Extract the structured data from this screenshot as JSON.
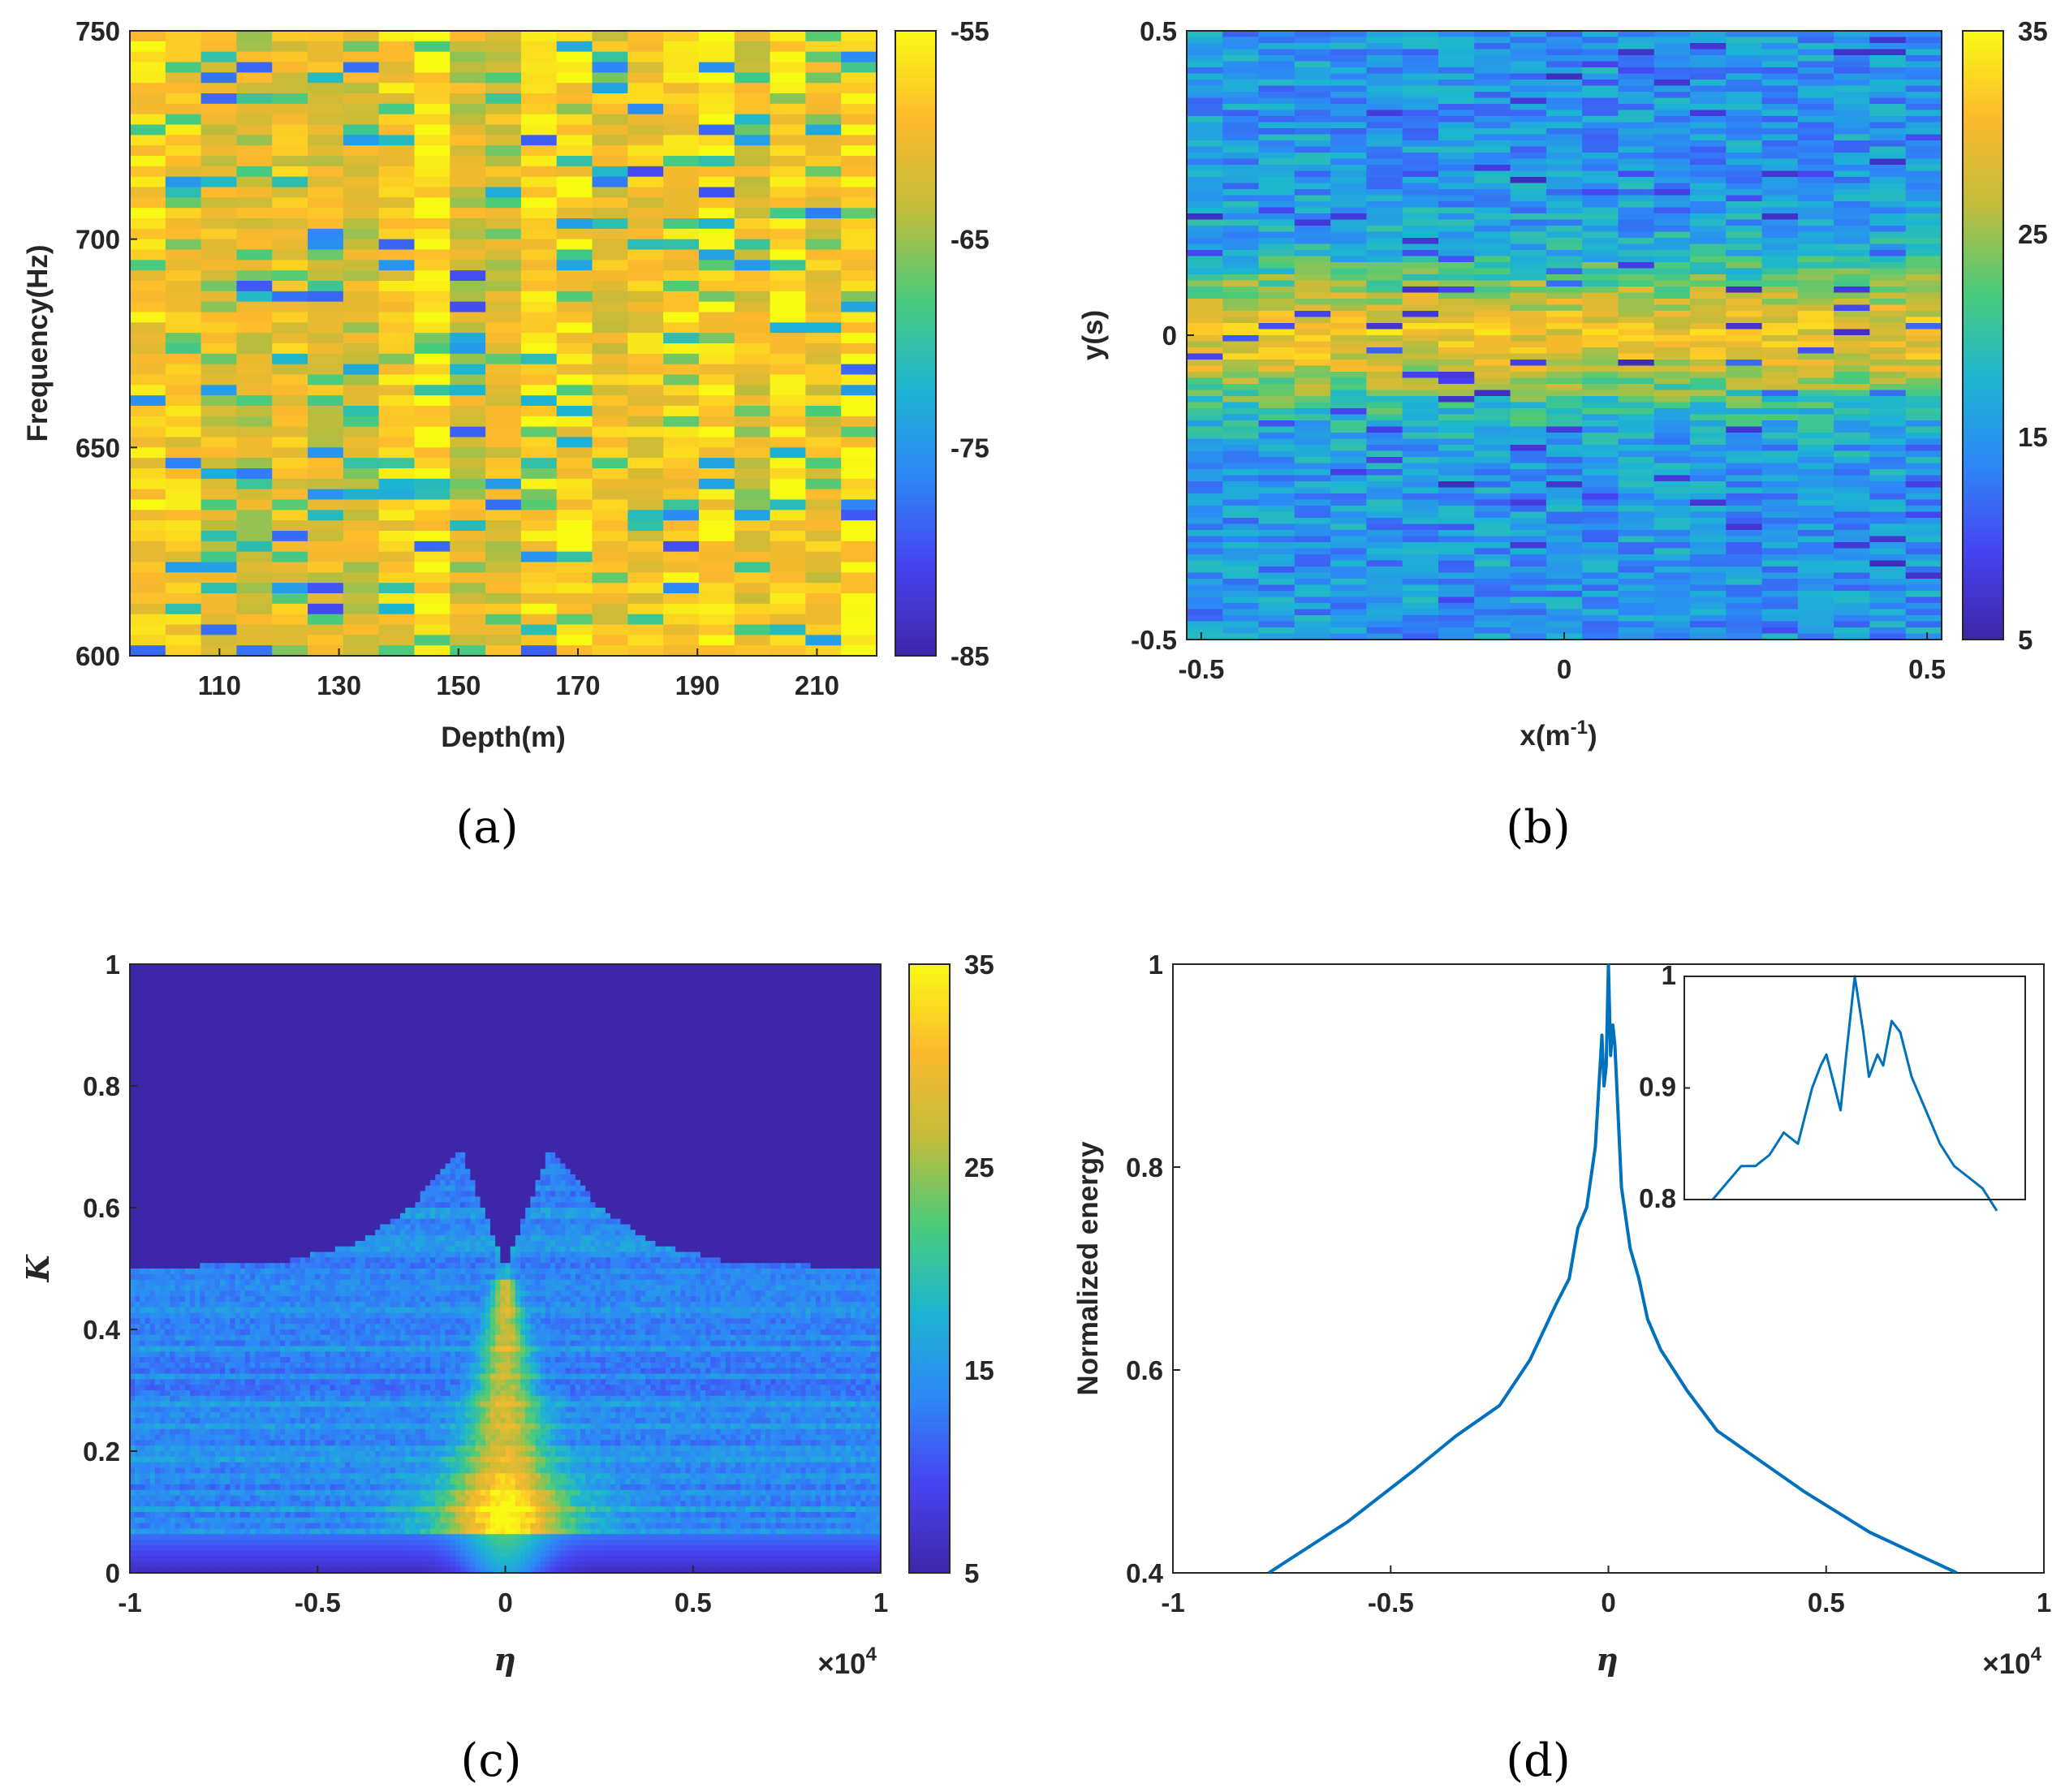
{
  "colormap": [
    "#3e26a8",
    "#4743f1",
    "#2e87f7",
    "#1cb5d1",
    "#4bcb7a",
    "#c1bc3a",
    "#fdb92d",
    "#f9fa14"
  ],
  "chart_data": [
    {
      "panel": "a",
      "type": "heatmap",
      "caption": "(a)",
      "xlabel": "Depth(m)",
      "ylabel": "Frequency(Hz)",
      "xlim": [
        95,
        220
      ],
      "ylim": [
        600,
        750
      ],
      "xticks": [
        110,
        130,
        150,
        170,
        190,
        210
      ],
      "yticks": [
        600,
        650,
        700,
        750
      ],
      "clim": [
        -85,
        -55
      ],
      "cticks": [
        -55,
        -65,
        -75,
        -85
      ],
      "column_width_m": 6,
      "value_pattern": "vertical stripes; mostly -60 to -55 dB, scattered low values near -80 dB"
    },
    {
      "panel": "b",
      "type": "heatmap",
      "caption": "(b)",
      "xlabel": "x(m",
      "xlabel_sup": "-1",
      "xlabel_end": ")",
      "ylabel": "y(s)",
      "xlim": [
        -0.52,
        0.52
      ],
      "ylim": [
        -0.5,
        0.5
      ],
      "xticks": [
        -0.5,
        0,
        0.5
      ],
      "yticks": [
        -0.5,
        0,
        0.5
      ],
      "clim": [
        5,
        35
      ],
      "cticks": [
        35,
        25,
        15,
        5
      ],
      "value_pattern": "horizontal band peaking near 30 around y = 0, falling to about 15 at |y| = 0.5"
    },
    {
      "panel": "c",
      "type": "heatmap",
      "caption": "(c)",
      "xlabel": "η",
      "ylabel": "K",
      "xlim": [
        -1,
        1
      ],
      "ylim": [
        0,
        1
      ],
      "xticks": [
        -1,
        -0.5,
        0,
        0.5,
        1
      ],
      "yticks": [
        0,
        0.2,
        0.4,
        0.6,
        0.8,
        1.0
      ],
      "x_multiplier": "×10",
      "x_multiplier_exp": "4",
      "clim": [
        5,
        35
      ],
      "cticks": [
        35,
        25,
        15,
        5
      ],
      "boundary_points": [
        [
          -1,
          0.5
        ],
        [
          -0.6,
          0.51
        ],
        [
          -0.4,
          0.54
        ],
        [
          -0.25,
          0.6
        ],
        [
          -0.12,
          0.7
        ],
        [
          -0.06,
          0.6
        ],
        [
          0,
          0.5
        ],
        [
          0.06,
          0.6
        ],
        [
          0.12,
          0.7
        ],
        [
          0.25,
          0.6
        ],
        [
          0.4,
          0.54
        ],
        [
          0.6,
          0.51
        ],
        [
          1,
          0.5
        ]
      ],
      "value_pattern": "values near 5 above the boundary; about 12 to 20 below it; peak near 30 in a plume around η = 0, K < 0.5"
    },
    {
      "panel": "d",
      "type": "line",
      "caption": "(d)",
      "xlabel": "η",
      "ylabel": "Normalized energy",
      "xlim": [
        -1,
        1
      ],
      "ylim": [
        0.4,
        1.0
      ],
      "xticks": [
        -1,
        -0.5,
        0,
        0.5,
        1
      ],
      "yticks": [
        0.4,
        0.6,
        0.8,
        1.0
      ],
      "x_multiplier": "×10",
      "x_multiplier_exp": "4",
      "line_color": "#0072bd",
      "series": [
        {
          "x": [
            -0.78,
            -0.6,
            -0.45,
            -0.35,
            -0.25,
            -0.18,
            -0.12,
            -0.09,
            -0.07,
            -0.05,
            -0.03,
            -0.015,
            -0.01,
            -0.005,
            0,
            0.005,
            0.01,
            0.015,
            0.03,
            0.05,
            0.07,
            0.09,
            0.12,
            0.18,
            0.25,
            0.35,
            0.45,
            0.6,
            0.8
          ],
          "y": [
            0.4,
            0.45,
            0.5,
            0.535,
            0.565,
            0.61,
            0.665,
            0.69,
            0.74,
            0.76,
            0.82,
            0.93,
            0.88,
            0.9,
            1.0,
            0.91,
            0.94,
            0.92,
            0.78,
            0.72,
            0.69,
            0.65,
            0.62,
            0.58,
            0.54,
            0.51,
            0.48,
            0.44,
            0.4
          ]
        }
      ],
      "inset": {
        "ylim": [
          0.8,
          1.0
        ],
        "yticks": [
          0.8,
          0.9,
          1
        ],
        "series": [
          {
            "x": [
              -0.05,
              -0.04,
              -0.035,
              -0.03,
              -0.025,
              -0.02,
              -0.018,
              -0.015,
              -0.012,
              -0.01,
              -0.008,
              -0.005,
              -0.003,
              0,
              0.003,
              0.005,
              0.008,
              0.01,
              0.013,
              0.016,
              0.02,
              0.025,
              0.03,
              0.035,
              0.04,
              0.045,
              0.05
            ],
            "y": [
              0.8,
              0.83,
              0.83,
              0.84,
              0.86,
              0.85,
              0.87,
              0.9,
              0.92,
              0.93,
              0.91,
              0.88,
              0.93,
              1.0,
              0.95,
              0.91,
              0.93,
              0.92,
              0.96,
              0.95,
              0.91,
              0.88,
              0.85,
              0.83,
              0.82,
              0.81,
              0.79
            ]
          }
        ]
      }
    }
  ]
}
